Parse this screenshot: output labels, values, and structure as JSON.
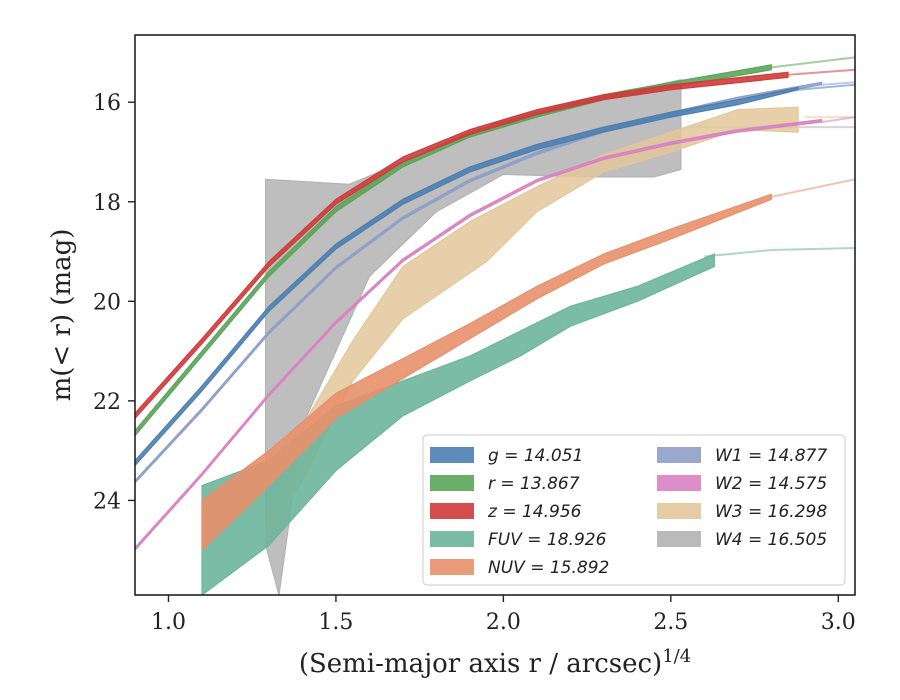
{
  "chart_data": {
    "type": "line",
    "xlabel_main": "(Semi-major axis r / arcsec)",
    "xlabel_sup": "1/4",
    "ylabel": "m(< r) (mag)",
    "xlim": [
      0.9,
      3.05
    ],
    "ylim": [
      25.9,
      14.65
    ],
    "y_inverted": true,
    "xticks": [
      "1.0",
      "1.5",
      "2.0",
      "2.5",
      "3.0"
    ],
    "xtick_values": [
      1.0,
      1.5,
      2.0,
      2.5,
      3.0
    ],
    "yticks": [
      "16",
      "18",
      "20",
      "22",
      "24"
    ],
    "ytick_values": [
      16,
      18,
      20,
      22,
      24
    ],
    "grid": false,
    "legend_placement": "lower-right",
    "series": [
      {
        "key": "g",
        "name": "g = 14.051",
        "color": "#4c7fb0",
        "extrap": [
          [
            2.88,
            15.75
          ],
          [
            3.05,
            15.65
          ]
        ],
        "upper": [
          [
            0.9,
            23.3
          ],
          [
            1.1,
            21.8
          ],
          [
            1.3,
            20.2
          ],
          [
            1.5,
            18.95
          ],
          [
            1.7,
            18.05
          ],
          [
            1.9,
            17.4
          ],
          [
            2.1,
            16.95
          ],
          [
            2.3,
            16.6
          ],
          [
            2.5,
            16.3
          ],
          [
            2.7,
            16.05
          ],
          [
            2.88,
            15.75
          ]
        ],
        "lower": [
          [
            0.9,
            23.2
          ],
          [
            1.1,
            21.7
          ],
          [
            1.3,
            20.1
          ],
          [
            1.5,
            18.85
          ],
          [
            1.7,
            17.95
          ],
          [
            1.9,
            17.3
          ],
          [
            2.1,
            16.85
          ],
          [
            2.3,
            16.5
          ],
          [
            2.5,
            16.2
          ],
          [
            2.7,
            15.95
          ],
          [
            2.88,
            15.7
          ]
        ]
      },
      {
        "key": "r",
        "name": "r = 13.867",
        "color": "#5aa55a",
        "extrap": [
          [
            2.8,
            15.3
          ],
          [
            3.05,
            15.1
          ]
        ],
        "upper": [
          [
            0.9,
            22.7
          ],
          [
            1.1,
            21.1
          ],
          [
            1.3,
            19.5
          ],
          [
            1.5,
            18.2
          ],
          [
            1.7,
            17.3
          ],
          [
            1.9,
            16.7
          ],
          [
            2.1,
            16.3
          ],
          [
            2.3,
            15.95
          ],
          [
            2.5,
            15.7
          ],
          [
            2.8,
            15.35
          ]
        ],
        "lower": [
          [
            0.9,
            22.6
          ],
          [
            1.1,
            21.0
          ],
          [
            1.3,
            19.4
          ],
          [
            1.5,
            18.1
          ],
          [
            1.7,
            17.2
          ],
          [
            1.9,
            16.6
          ],
          [
            2.1,
            16.2
          ],
          [
            2.3,
            15.85
          ],
          [
            2.5,
            15.6
          ],
          [
            2.8,
            15.25
          ]
        ]
      },
      {
        "key": "z",
        "name": "z = 14.956",
        "color": "#d03b3b",
        "extrap": [
          [
            2.85,
            15.45
          ],
          [
            3.05,
            15.35
          ]
        ],
        "upper": [
          [
            0.9,
            22.35
          ],
          [
            1.1,
            20.85
          ],
          [
            1.3,
            19.3
          ],
          [
            1.5,
            18.05
          ],
          [
            1.7,
            17.2
          ],
          [
            1.9,
            16.65
          ],
          [
            2.1,
            16.25
          ],
          [
            2.3,
            15.95
          ],
          [
            2.5,
            15.75
          ],
          [
            2.85,
            15.5
          ]
        ],
        "lower": [
          [
            0.9,
            22.25
          ],
          [
            1.1,
            20.75
          ],
          [
            1.3,
            19.2
          ],
          [
            1.5,
            17.95
          ],
          [
            1.7,
            17.1
          ],
          [
            1.9,
            16.55
          ],
          [
            2.1,
            16.15
          ],
          [
            2.3,
            15.85
          ],
          [
            2.5,
            15.65
          ],
          [
            2.85,
            15.4
          ]
        ]
      },
      {
        "key": "FUV",
        "name": "FUV = 18.926",
        "color": "#6db59d",
        "extrap": [
          [
            2.6,
            19.1
          ],
          [
            2.8,
            18.97
          ],
          [
            3.05,
            18.93
          ]
        ],
        "upper": [
          [
            1.1,
            23.7
          ],
          [
            1.3,
            23.2
          ],
          [
            1.5,
            22.1
          ],
          [
            1.7,
            21.6
          ],
          [
            1.9,
            21.1
          ],
          [
            2.05,
            20.6
          ],
          [
            2.2,
            20.1
          ],
          [
            2.4,
            19.7
          ],
          [
            2.63,
            19.05
          ]
        ],
        "lower": [
          [
            1.1,
            25.9
          ],
          [
            1.3,
            24.9
          ],
          [
            1.5,
            23.4
          ],
          [
            1.7,
            22.3
          ],
          [
            1.9,
            21.6
          ],
          [
            2.05,
            21.1
          ],
          [
            2.2,
            20.5
          ],
          [
            2.4,
            20.0
          ],
          [
            2.63,
            19.3
          ]
        ]
      },
      {
        "key": "NUV",
        "name": "NUV = 15.892",
        "color": "#e8906b",
        "extrap": [
          [
            2.8,
            17.9
          ],
          [
            3.05,
            17.55
          ]
        ],
        "upper": [
          [
            1.1,
            24.0
          ],
          [
            1.3,
            23.0
          ],
          [
            1.5,
            21.85
          ],
          [
            1.7,
            21.15
          ],
          [
            1.9,
            20.45
          ],
          [
            2.1,
            19.7
          ],
          [
            2.3,
            19.05
          ],
          [
            2.5,
            18.55
          ],
          [
            2.8,
            17.85
          ]
        ],
        "lower": [
          [
            1.1,
            25.0
          ],
          [
            1.3,
            23.7
          ],
          [
            1.5,
            22.35
          ],
          [
            1.7,
            21.55
          ],
          [
            1.9,
            20.75
          ],
          [
            2.1,
            19.95
          ],
          [
            2.3,
            19.25
          ],
          [
            2.5,
            18.75
          ],
          [
            2.8,
            17.95
          ]
        ]
      },
      {
        "key": "W1",
        "name": "W1 = 14.877",
        "color": "#8e9fc7",
        "extrap": [
          [
            2.95,
            15.65
          ],
          [
            3.05,
            15.6
          ]
        ],
        "upper": [
          [
            0.9,
            23.65
          ],
          [
            1.1,
            22.2
          ],
          [
            1.3,
            20.65
          ],
          [
            1.5,
            19.35
          ],
          [
            1.7,
            18.35
          ],
          [
            1.9,
            17.6
          ],
          [
            2.1,
            17.05
          ],
          [
            2.3,
            16.6
          ],
          [
            2.5,
            16.25
          ],
          [
            2.7,
            15.95
          ],
          [
            2.95,
            15.65
          ]
        ],
        "lower": [
          [
            0.9,
            23.6
          ],
          [
            1.1,
            22.15
          ],
          [
            1.3,
            20.6
          ],
          [
            1.5,
            19.3
          ],
          [
            1.7,
            18.3
          ],
          [
            1.9,
            17.55
          ],
          [
            2.1,
            17.0
          ],
          [
            2.3,
            16.55
          ],
          [
            2.5,
            16.2
          ],
          [
            2.7,
            15.9
          ],
          [
            2.95,
            15.6
          ]
        ]
      },
      {
        "key": "W2",
        "name": "W2 = 14.575",
        "color": "#d982c2",
        "extrap": [
          [
            2.95,
            16.4
          ],
          [
            3.05,
            16.3
          ]
        ],
        "upper": [
          [
            0.9,
            25.0
          ],
          [
            1.1,
            23.5
          ],
          [
            1.3,
            21.9
          ],
          [
            1.5,
            20.45
          ],
          [
            1.7,
            19.2
          ],
          [
            1.9,
            18.3
          ],
          [
            2.1,
            17.6
          ],
          [
            2.3,
            17.15
          ],
          [
            2.5,
            16.85
          ],
          [
            2.7,
            16.6
          ],
          [
            2.95,
            16.4
          ]
        ],
        "lower": [
          [
            0.9,
            24.95
          ],
          [
            1.1,
            23.45
          ],
          [
            1.3,
            21.85
          ],
          [
            1.5,
            20.4
          ],
          [
            1.7,
            19.15
          ],
          [
            1.9,
            18.25
          ],
          [
            2.1,
            17.55
          ],
          [
            2.3,
            17.1
          ],
          [
            2.5,
            16.8
          ],
          [
            2.7,
            16.55
          ],
          [
            2.95,
            16.35
          ]
        ]
      },
      {
        "key": "W3",
        "name": "W3 = 16.298",
        "color": "#e3c79a",
        "extrap": [
          [
            2.9,
            16.3
          ],
          [
            3.05,
            16.3
          ]
        ],
        "upper": [
          [
            1.29,
            24.5
          ],
          [
            1.4,
            22.5
          ],
          [
            1.55,
            20.8
          ],
          [
            1.7,
            19.3
          ],
          [
            1.9,
            18.4
          ],
          [
            2.1,
            17.7
          ],
          [
            2.3,
            17.05
          ],
          [
            2.5,
            16.6
          ],
          [
            2.7,
            16.15
          ],
          [
            2.88,
            16.1
          ]
        ],
        "lower": [
          [
            1.29,
            24.85
          ],
          [
            1.4,
            23.6
          ],
          [
            1.55,
            21.6
          ],
          [
            1.7,
            20.35
          ],
          [
            1.95,
            19.2
          ],
          [
            2.1,
            18.2
          ],
          [
            2.3,
            17.4
          ],
          [
            2.5,
            17.0
          ],
          [
            2.7,
            16.55
          ],
          [
            2.88,
            16.6
          ]
        ]
      },
      {
        "key": "W4",
        "name": "W4 = 16.505",
        "color": "#b3b3b3",
        "extrap": [
          [
            2.55,
            16.5
          ],
          [
            3.05,
            16.5
          ]
        ],
        "upper": [
          [
            1.29,
            17.55
          ],
          [
            1.54,
            17.65
          ],
          [
            1.7,
            17.2
          ],
          [
            1.85,
            16.85
          ],
          [
            2.0,
            16.35
          ],
          [
            2.2,
            16.05
          ],
          [
            2.53,
            15.55
          ]
        ],
        "lower": [
          [
            1.29,
            24.9
          ],
          [
            1.33,
            25.9
          ],
          [
            1.4,
            22.5
          ],
          [
            1.6,
            19.5
          ],
          [
            1.8,
            18.2
          ],
          [
            2.0,
            17.45
          ],
          [
            2.25,
            17.5
          ],
          [
            2.45,
            17.5
          ],
          [
            2.53,
            17.35
          ]
        ]
      }
    ],
    "legend_columns": [
      [
        "g",
        "r",
        "z",
        "FUV",
        "NUV"
      ],
      [
        "W1",
        "W2",
        "W3",
        "W4"
      ]
    ]
  }
}
